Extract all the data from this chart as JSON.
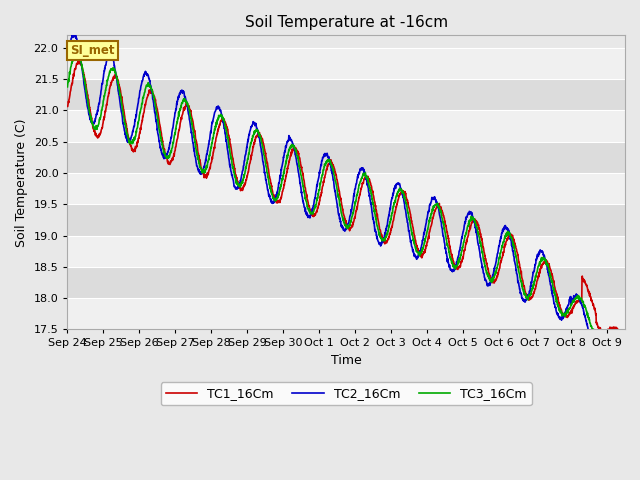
{
  "title": "Soil Temperature at -16cm",
  "xlabel": "Time",
  "ylabel": "Soil Temperature (C)",
  "ylim": [
    17.5,
    22.2
  ],
  "yticks": [
    17.5,
    18.0,
    18.5,
    19.0,
    19.5,
    20.0,
    20.5,
    21.0,
    21.5,
    22.0
  ],
  "colors": {
    "TC1": "#cc0000",
    "TC2": "#0000cc",
    "TC3": "#00aa00"
  },
  "legend_label": "SI_met",
  "legend_bg": "#ffff99",
  "legend_border": "#996600",
  "fig_bg": "#e8e8e8",
  "plot_bg": "#e8e8e8",
  "band_light": "#f0f0f0",
  "band_dark": "#dcdcdc",
  "x_labels": [
    "Sep 24",
    "Sep 25",
    "Sep 26",
    "Sep 27",
    "Sep 28",
    "Sep 29",
    "Sep 30",
    "Oct 1",
    "Oct 2",
    "Oct 3",
    "Oct 4",
    "Oct 5",
    "Oct 6",
    "Oct 7",
    "Oct 8",
    "Oct 9"
  ],
  "line_width": 1.2
}
